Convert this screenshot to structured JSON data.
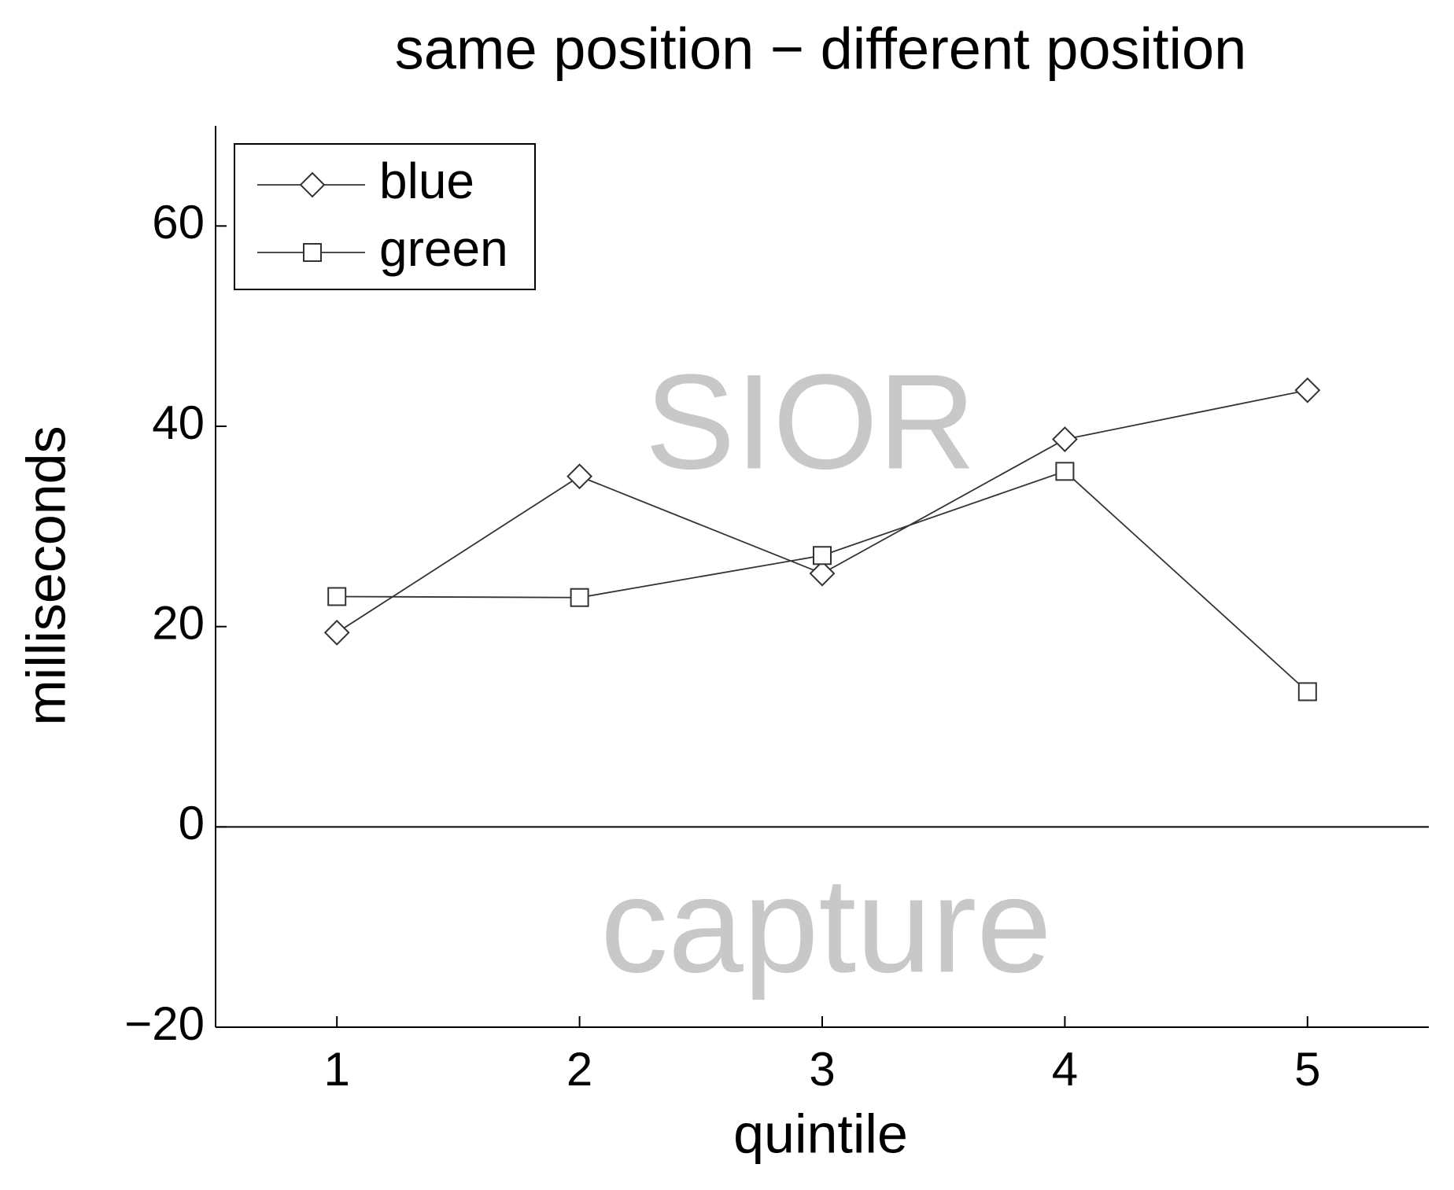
{
  "chart_data": {
    "type": "line",
    "title": "same position − different position",
    "x_label": "quintile",
    "y_label": "milliseconds",
    "x": [
      1,
      2,
      3,
      4,
      5
    ],
    "series": [
      {
        "name": "blue",
        "color": "#333333",
        "marker": "diamond",
        "values": [
          19.4,
          35.0,
          25.3,
          38.7,
          43.6
        ]
      },
      {
        "name": "green",
        "color": "#333333",
        "marker": "square",
        "values": [
          23.0,
          22.9,
          27.1,
          35.5,
          13.5
        ]
      }
    ],
    "xlim": [
      0.5,
      5.5
    ],
    "xticks": [
      1,
      2,
      3,
      4,
      5
    ],
    "ylim": [
      -20,
      70
    ],
    "yticks": [
      {
        "value": -20,
        "label": "−20"
      },
      0,
      20,
      40,
      60
    ],
    "annotations": [
      "SIOR",
      "capture"
    ],
    "legend": "upper-left",
    "grid": false
  }
}
